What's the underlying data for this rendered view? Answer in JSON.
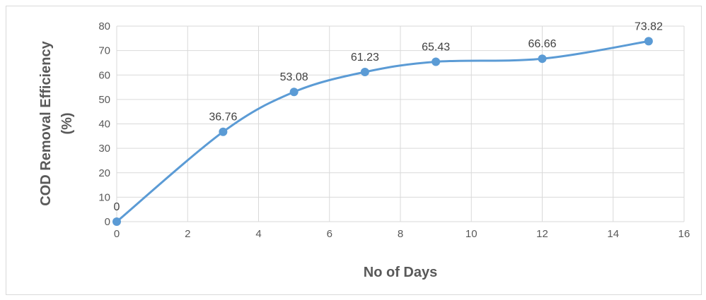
{
  "chart_data": {
    "type": "line",
    "smooth": true,
    "markers": true,
    "color": "#5b9bd5",
    "grid": true,
    "legend": "none",
    "xlabel": "No of Days",
    "ylabel_lines": [
      "COD Removal Efficiency",
      "(%)"
    ],
    "xlim": [
      0,
      16
    ],
    "ylim": [
      0,
      80
    ],
    "xticks": [
      0,
      2,
      4,
      6,
      8,
      10,
      12,
      14,
      16
    ],
    "yticks": [
      0,
      10,
      20,
      30,
      40,
      50,
      60,
      70,
      80
    ],
    "x": [
      0,
      3,
      5,
      7,
      9,
      12,
      15
    ],
    "y": [
      0,
      36.76,
      53.08,
      61.23,
      65.43,
      66.66,
      73.82
    ],
    "data_labels": [
      "0",
      "36.76",
      "53.08",
      "61.23",
      "65.43",
      "66.66",
      "73.82"
    ]
  }
}
